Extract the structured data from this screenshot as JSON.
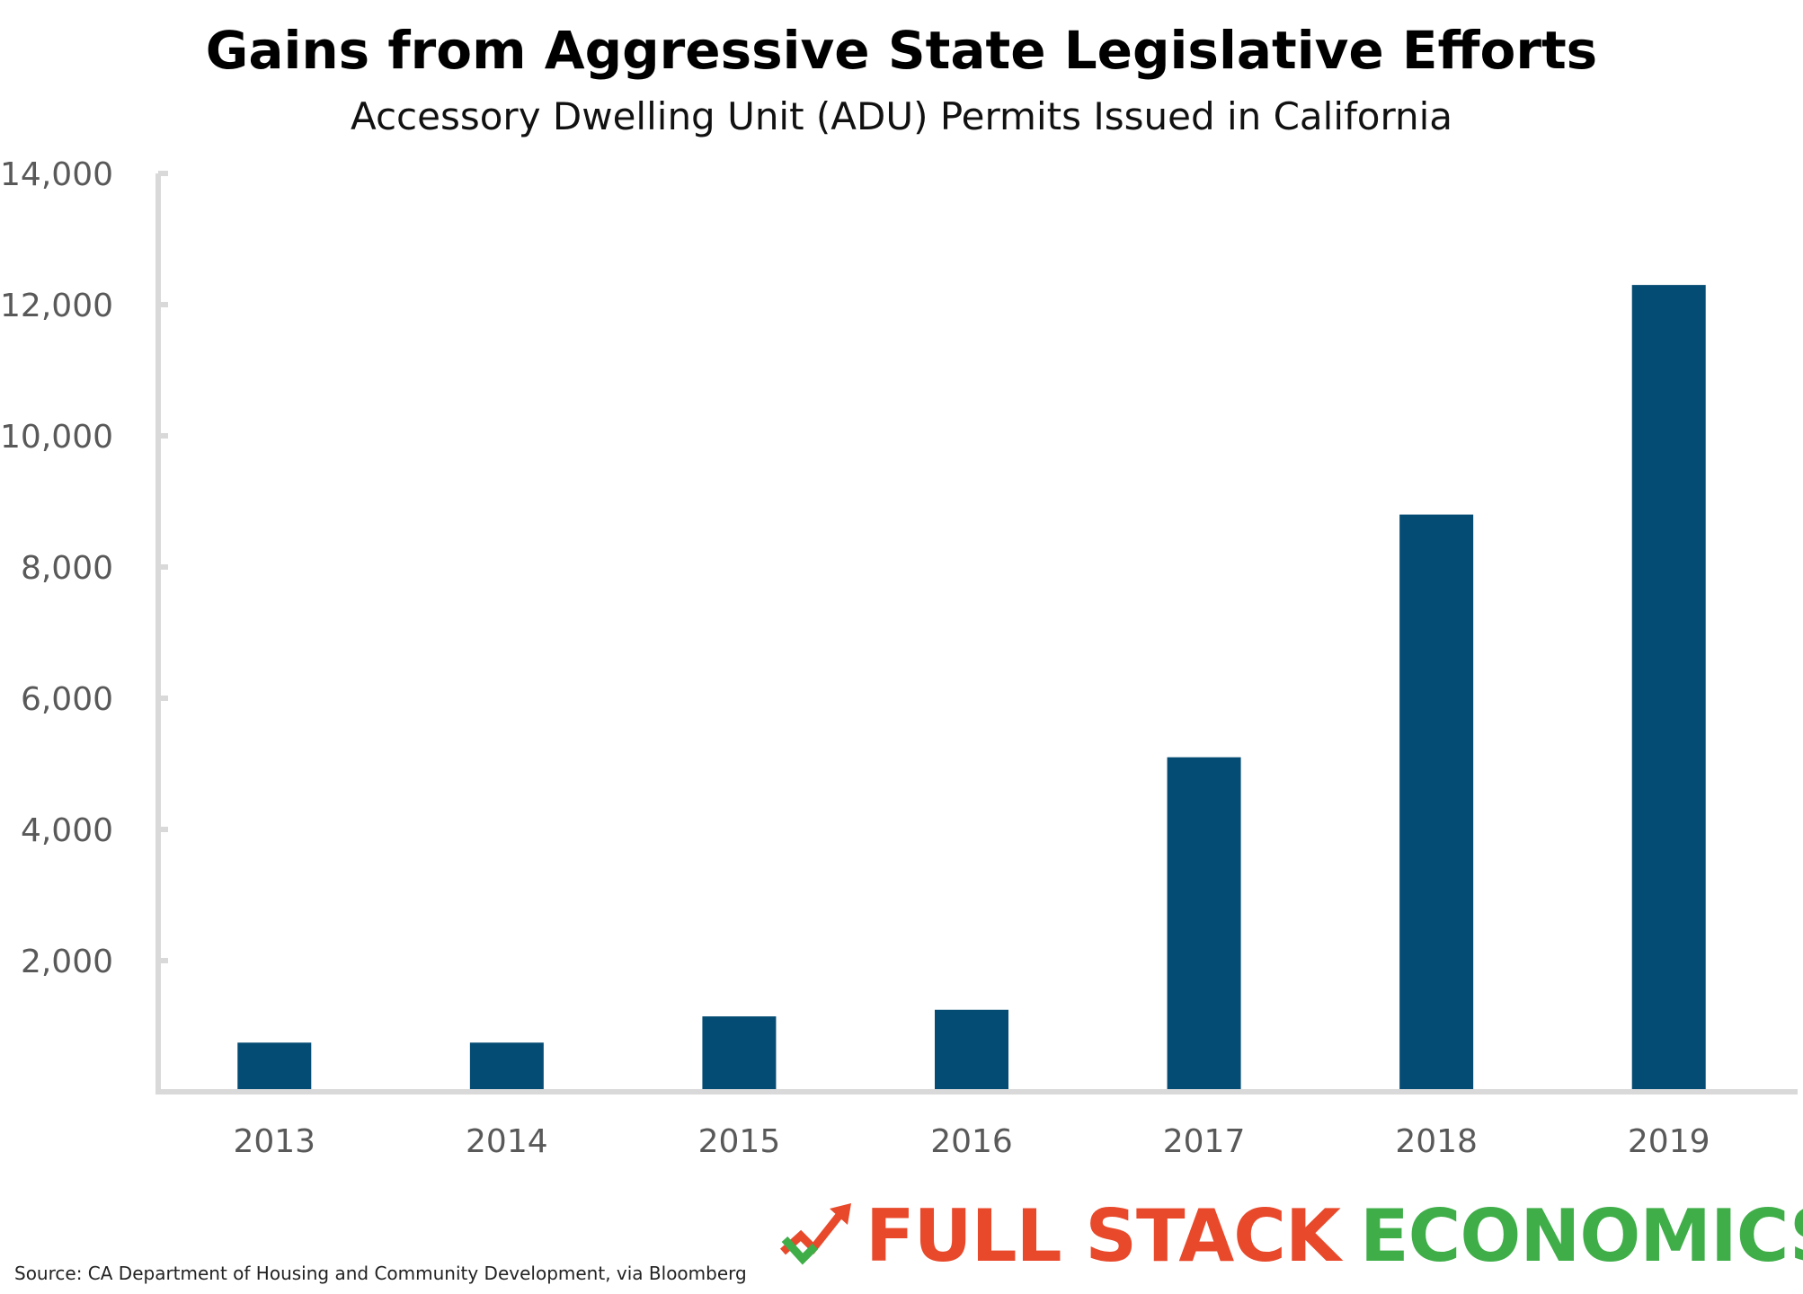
{
  "chart_data": {
    "type": "bar",
    "title": "Gains from Aggressive State Legislative Efforts",
    "subtitle": "Accessory Dwelling Unit (ADU) Permits Issued in California",
    "categories": [
      "2013",
      "2014",
      "2015",
      "2016",
      "2017",
      "2018",
      "2019"
    ],
    "values": [
      750,
      750,
      1150,
      1250,
      5100,
      8800,
      12300
    ],
    "ylim": [
      0,
      14000
    ],
    "yticks": [
      0,
      2000,
      4000,
      6000,
      8000,
      10000,
      12000,
      14000
    ],
    "ytick_labels": [
      "",
      "2,000",
      "4,000",
      "6,000",
      "8,000",
      "10,000",
      "12,000",
      "14,000"
    ],
    "xlabel": "",
    "ylabel": "",
    "grid": false,
    "bar_color": "#054c74",
    "axis_color": "#d9d9d9"
  },
  "source": "Source: CA Department of Housing and Community Development, via Bloomberg",
  "brand": {
    "icon": "trend-arrow-icon",
    "word1": "FULL STACK",
    "word2": "ECONOMICS",
    "color1": "#e8492b",
    "color2": "#3fae49"
  }
}
